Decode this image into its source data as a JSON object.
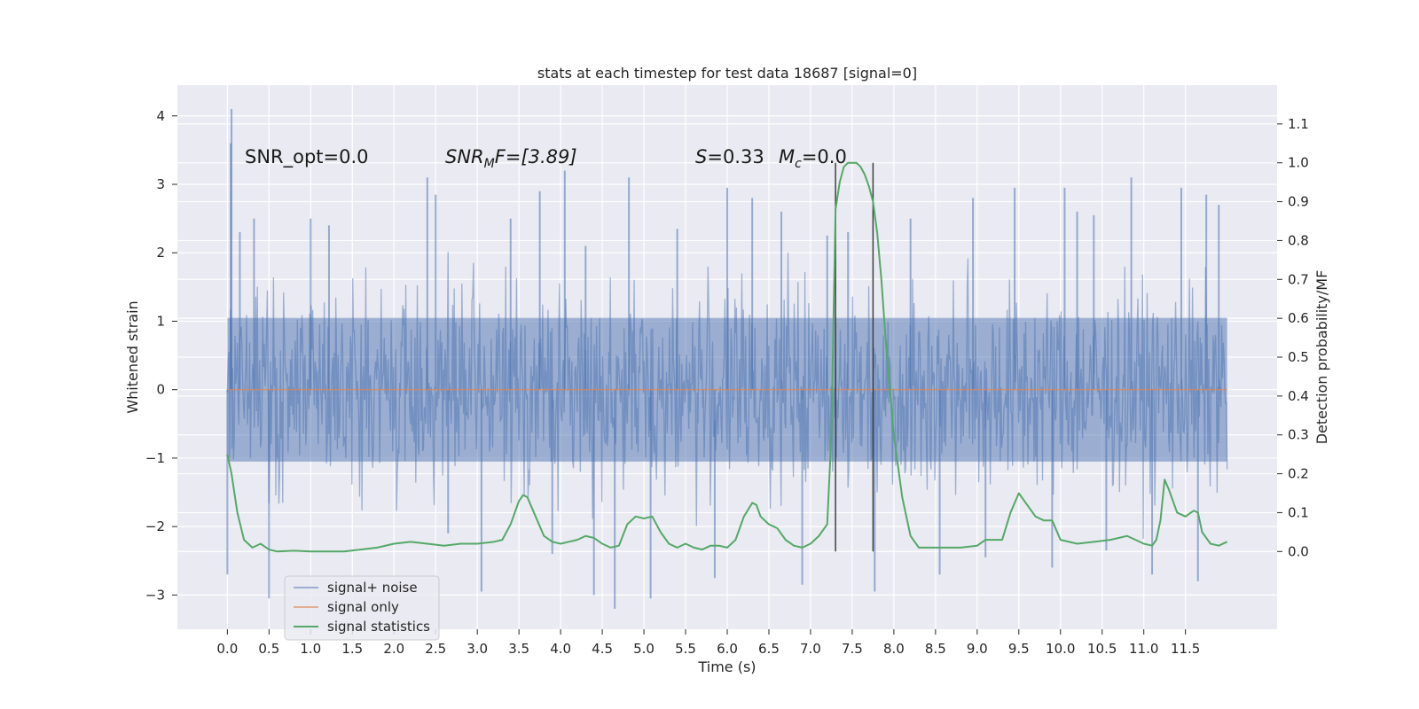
{
  "chart_data": {
    "type": "line",
    "title": "stats at each timestep for test data 18687 [signal=0]",
    "xlabel": "Time (s)",
    "ylabel_left": "Whitened strain",
    "ylabel_right": "Detection probability/MF",
    "xlim": [
      -0.6,
      12.6
    ],
    "ylim_left": [
      -3.5,
      4.45
    ],
    "ylim_right": [
      -0.2,
      1.2
    ],
    "x_ticks": [
      "0.0",
      "0.5",
      "1.0",
      "1.5",
      "2.0",
      "2.5",
      "3.0",
      "3.5",
      "4.0",
      "4.5",
      "5.0",
      "5.5",
      "6.0",
      "6.5",
      "7.0",
      "7.5",
      "8.0",
      "8.5",
      "9.0",
      "9.5",
      "10.0",
      "10.5",
      "11.0",
      "11.5"
    ],
    "y_ticks_left": [
      "−3",
      "−2",
      "−1",
      "0",
      "1",
      "2",
      "3",
      "4"
    ],
    "y_ticks_right": [
      "0.0",
      "0.1",
      "0.2",
      "0.3",
      "0.4",
      "0.5",
      "0.6",
      "0.7",
      "0.8",
      "0.9",
      "1.0",
      "1.1"
    ],
    "grid": true,
    "legend_placement": "lower-left",
    "colors": {
      "noise": "#4c72b0",
      "signal": "#dd8452",
      "stats": "#55a868",
      "vline": "#404040",
      "background": "#eaeaf2"
    },
    "annotations": {
      "snr_opt": "SNR_opt=0.0",
      "snr_mf_main": "SNR",
      "snr_mf_sub": "M",
      "snr_mf_rest": "F=[3.89]",
      "s_var": "S",
      "s_rest": "=0.33",
      "mc_var": "M",
      "mc_sub": "c",
      "mc_rest": "=0.0"
    },
    "vertical_lines_x": [
      7.3,
      7.75
    ],
    "series": [
      {
        "name": "signal+ noise",
        "axis": "left",
        "style": "noise",
        "duration": 12.0,
        "band": [
          -1.05,
          1.05
        ],
        "extremes": [
          [
            0.05,
            4.1
          ],
          [
            0.04,
            3.6
          ],
          [
            0.0,
            -2.7
          ],
          [
            0.5,
            -3.05
          ],
          [
            0.15,
            2.3
          ],
          [
            0.32,
            2.5
          ],
          [
            1.0,
            2.5
          ],
          [
            1.22,
            2.4
          ],
          [
            2.4,
            3.1
          ],
          [
            2.5,
            2.85
          ],
          [
            2.65,
            -2.1
          ],
          [
            3.05,
            -2.95
          ],
          [
            3.4,
            2.5
          ],
          [
            3.75,
            2.9
          ],
          [
            3.9,
            -2.4
          ],
          [
            4.05,
            3.2
          ],
          [
            4.3,
            2.1
          ],
          [
            4.4,
            -3.0
          ],
          [
            4.65,
            -3.2
          ],
          [
            4.82,
            3.1
          ],
          [
            5.08,
            -3.05
          ],
          [
            5.4,
            2.35
          ],
          [
            5.85,
            -2.75
          ],
          [
            6.0,
            2.95
          ],
          [
            6.3,
            2.8
          ],
          [
            6.65,
            2.6
          ],
          [
            6.9,
            -2.85
          ],
          [
            7.2,
            2.25
          ],
          [
            7.45,
            2.3
          ],
          [
            7.77,
            -2.95
          ],
          [
            8.2,
            2.5
          ],
          [
            8.55,
            -2.7
          ],
          [
            8.95,
            2.8
          ],
          [
            9.1,
            -2.45
          ],
          [
            9.45,
            2.95
          ],
          [
            9.9,
            -2.6
          ],
          [
            10.05,
            2.95
          ],
          [
            10.2,
            2.6
          ],
          [
            10.4,
            2.55
          ],
          [
            10.55,
            -2.35
          ],
          [
            10.85,
            3.1
          ],
          [
            11.1,
            -2.7
          ],
          [
            11.45,
            2.95
          ],
          [
            11.75,
            2.85
          ],
          [
            11.65,
            -2.8
          ],
          [
            11.9,
            2.7
          ]
        ]
      },
      {
        "name": "signal only",
        "axis": "left",
        "style": "signal",
        "x": [
          0.0,
          12.0
        ],
        "y": [
          0.0,
          0.0
        ]
      },
      {
        "name": "signal statistics",
        "axis": "right",
        "style": "stats",
        "x": [
          0.0,
          0.05,
          0.12,
          0.2,
          0.3,
          0.4,
          0.5,
          0.6,
          0.8,
          1.0,
          1.2,
          1.4,
          1.6,
          1.8,
          2.0,
          2.2,
          2.4,
          2.6,
          2.8,
          3.0,
          3.2,
          3.3,
          3.4,
          3.5,
          3.55,
          3.6,
          3.7,
          3.8,
          3.9,
          4.0,
          4.1,
          4.2,
          4.3,
          4.4,
          4.5,
          4.6,
          4.7,
          4.8,
          4.9,
          5.0,
          5.1,
          5.2,
          5.3,
          5.4,
          5.5,
          5.6,
          5.7,
          5.8,
          5.9,
          6.0,
          6.1,
          6.2,
          6.3,
          6.35,
          6.4,
          6.5,
          6.6,
          6.7,
          6.8,
          6.9,
          7.0,
          7.1,
          7.2,
          7.25,
          7.3,
          7.35,
          7.4,
          7.45,
          7.5,
          7.55,
          7.6,
          7.65,
          7.7,
          7.75,
          7.8,
          7.85,
          7.9,
          7.95,
          8.0,
          8.1,
          8.2,
          8.3,
          8.4,
          8.6,
          8.8,
          9.0,
          9.1,
          9.2,
          9.3,
          9.4,
          9.5,
          9.6,
          9.7,
          9.8,
          9.9,
          10.0,
          10.2,
          10.4,
          10.6,
          10.8,
          11.0,
          11.1,
          11.15,
          11.2,
          11.25,
          11.3,
          11.4,
          11.5,
          11.6,
          11.65,
          11.7,
          11.8,
          11.9,
          12.0
        ],
        "y": [
          0.25,
          0.2,
          0.1,
          0.03,
          0.01,
          0.02,
          0.005,
          0.0,
          0.002,
          0.0,
          0.0,
          0.0,
          0.005,
          0.01,
          0.02,
          0.025,
          0.02,
          0.015,
          0.02,
          0.02,
          0.025,
          0.03,
          0.07,
          0.13,
          0.145,
          0.14,
          0.09,
          0.04,
          0.025,
          0.02,
          0.025,
          0.03,
          0.04,
          0.035,
          0.02,
          0.01,
          0.015,
          0.07,
          0.09,
          0.085,
          0.09,
          0.05,
          0.02,
          0.01,
          0.02,
          0.01,
          0.005,
          0.015,
          0.015,
          0.01,
          0.03,
          0.09,
          0.125,
          0.12,
          0.09,
          0.07,
          0.06,
          0.03,
          0.015,
          0.01,
          0.02,
          0.04,
          0.07,
          0.3,
          0.88,
          0.95,
          0.99,
          1.0,
          1.0,
          1.0,
          0.99,
          0.97,
          0.94,
          0.9,
          0.82,
          0.7,
          0.55,
          0.42,
          0.3,
          0.14,
          0.04,
          0.01,
          0.01,
          0.01,
          0.01,
          0.015,
          0.03,
          0.03,
          0.03,
          0.1,
          0.15,
          0.12,
          0.09,
          0.08,
          0.08,
          0.03,
          0.02,
          0.025,
          0.03,
          0.04,
          0.02,
          0.015,
          0.03,
          0.08,
          0.185,
          0.16,
          0.1,
          0.09,
          0.105,
          0.1,
          0.05,
          0.02,
          0.015,
          0.025
        ]
      }
    ]
  }
}
